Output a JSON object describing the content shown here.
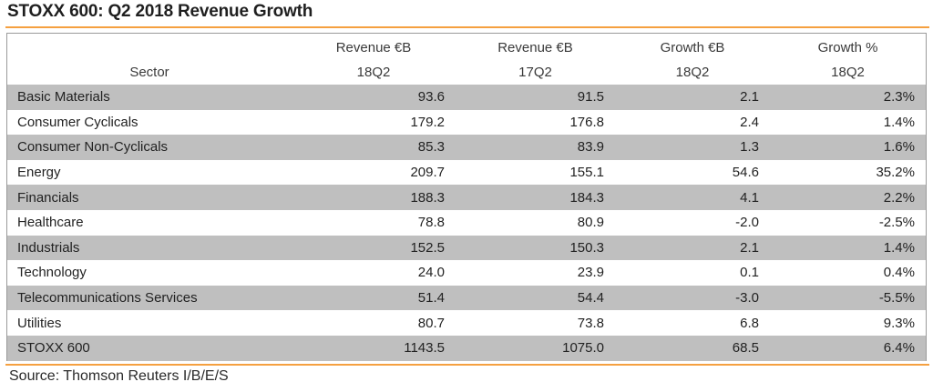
{
  "title": "STOXX 600: Q2 2018 Revenue Growth",
  "source": "Source: Thomson Reuters I/B/E/S",
  "colors": {
    "accent_rule": "#f5a040",
    "row_shade": "#bfbfbf"
  },
  "chart_data": {
    "type": "table",
    "title": "STOXX 600: Q2 2018 Revenue Growth",
    "header_row1": [
      "",
      "Revenue €B",
      "Revenue €B",
      "Growth €B",
      "Growth %"
    ],
    "header_row2": [
      "Sector",
      "18Q2",
      "17Q2",
      "18Q2",
      "18Q2"
    ],
    "rows": [
      {
        "sector": "Basic Materials",
        "rev_18q2": "93.6",
        "rev_17q2": "91.5",
        "growth_eur": "2.1",
        "growth_pct": "2.3%"
      },
      {
        "sector": "Consumer Cyclicals",
        "rev_18q2": "179.2",
        "rev_17q2": "176.8",
        "growth_eur": "2.4",
        "growth_pct": "1.4%"
      },
      {
        "sector": "Consumer Non-Cyclicals",
        "rev_18q2": "85.3",
        "rev_17q2": "83.9",
        "growth_eur": "1.3",
        "growth_pct": "1.6%"
      },
      {
        "sector": "Energy",
        "rev_18q2": "209.7",
        "rev_17q2": "155.1",
        "growth_eur": "54.6",
        "growth_pct": "35.2%"
      },
      {
        "sector": "Financials",
        "rev_18q2": "188.3",
        "rev_17q2": "184.3",
        "growth_eur": "4.1",
        "growth_pct": "2.2%"
      },
      {
        "sector": "Healthcare",
        "rev_18q2": "78.8",
        "rev_17q2": "80.9",
        "growth_eur": "-2.0",
        "growth_pct": "-2.5%"
      },
      {
        "sector": "Industrials",
        "rev_18q2": "152.5",
        "rev_17q2": "150.3",
        "growth_eur": "2.1",
        "growth_pct": "1.4%"
      },
      {
        "sector": "Technology",
        "rev_18q2": "24.0",
        "rev_17q2": "23.9",
        "growth_eur": "0.1",
        "growth_pct": "0.4%"
      },
      {
        "sector": "Telecommunications Services",
        "rev_18q2": "51.4",
        "rev_17q2": "54.4",
        "growth_eur": "-3.0",
        "growth_pct": "-5.5%"
      },
      {
        "sector": "Utilities",
        "rev_18q2": "80.7",
        "rev_17q2": "73.8",
        "growth_eur": "6.8",
        "growth_pct": "9.3%"
      }
    ],
    "total": {
      "sector": "STOXX 600",
      "rev_18q2": "1143.5",
      "rev_17q2": "1075.0",
      "growth_eur": "68.5",
      "growth_pct": "6.4%"
    }
  }
}
